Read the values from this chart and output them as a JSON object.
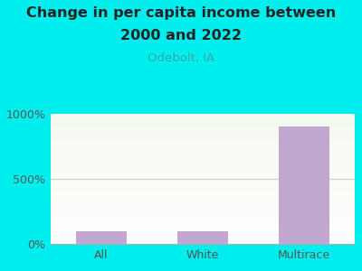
{
  "title_line1": "Change in per capita income between",
  "title_line2": "2000 and 2022",
  "subtitle": "Odebolt, IA",
  "categories": [
    "All",
    "White",
    "Multirace"
  ],
  "values": [
    100,
    100,
    900
  ],
  "bar_color": "#C0A8D0",
  "background_color": "#00EEEE",
  "plot_bg_grad_top": "#f5faf0",
  "plot_bg_grad_bottom": "#ffffff",
  "title_color": "#222222",
  "subtitle_color": "#33AAAA",
  "tick_color": "#555555",
  "ylim": [
    0,
    1000
  ],
  "yticks": [
    0,
    500,
    1000
  ],
  "ytick_labels": [
    "0%",
    "500%",
    "1000%"
  ],
  "title_fontsize": 11.5,
  "subtitle_fontsize": 9.5,
  "tick_fontsize": 9,
  "bar_width": 0.5
}
